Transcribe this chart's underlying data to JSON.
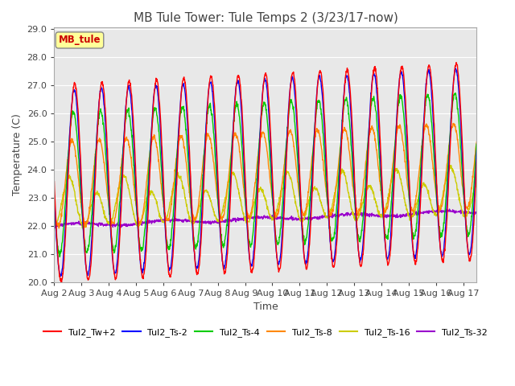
{
  "title": "MB Tule Tower: Tule Temps 2 (3/23/17-now)",
  "xlabel": "Time",
  "ylabel": "Temperature (C)",
  "ylim": [
    20.0,
    29.0
  ],
  "xlim_days": 15.5,
  "x_tick_labels": [
    "Aug 2",
    "Aug 3",
    "Aug 4",
    "Aug 5",
    "Aug 6",
    "Aug 7",
    "Aug 8",
    "Aug 9",
    "Aug 10",
    "Aug 11",
    "Aug 12",
    "Aug 13",
    "Aug 14",
    "Aug 15",
    "Aug 16",
    "Aug 17"
  ],
  "annotation_text": "MB_tule",
  "annotation_box_color": "#ffff99",
  "annotation_text_color": "#cc0000",
  "series_colors": {
    "Tul2_Tw+2": "#ff0000",
    "Tul2_Ts-2": "#0000ff",
    "Tul2_Ts-4": "#00cc00",
    "Tul2_Ts-8": "#ff8800",
    "Tul2_Ts-16": "#cccc00",
    "Tul2_Ts-32": "#9900cc"
  },
  "background_color": "#ffffff",
  "plot_bg_color": "#e8e8e8",
  "grid_color": "#ffffff",
  "title_fontsize": 11,
  "axis_label_fontsize": 9,
  "tick_label_fontsize": 8
}
